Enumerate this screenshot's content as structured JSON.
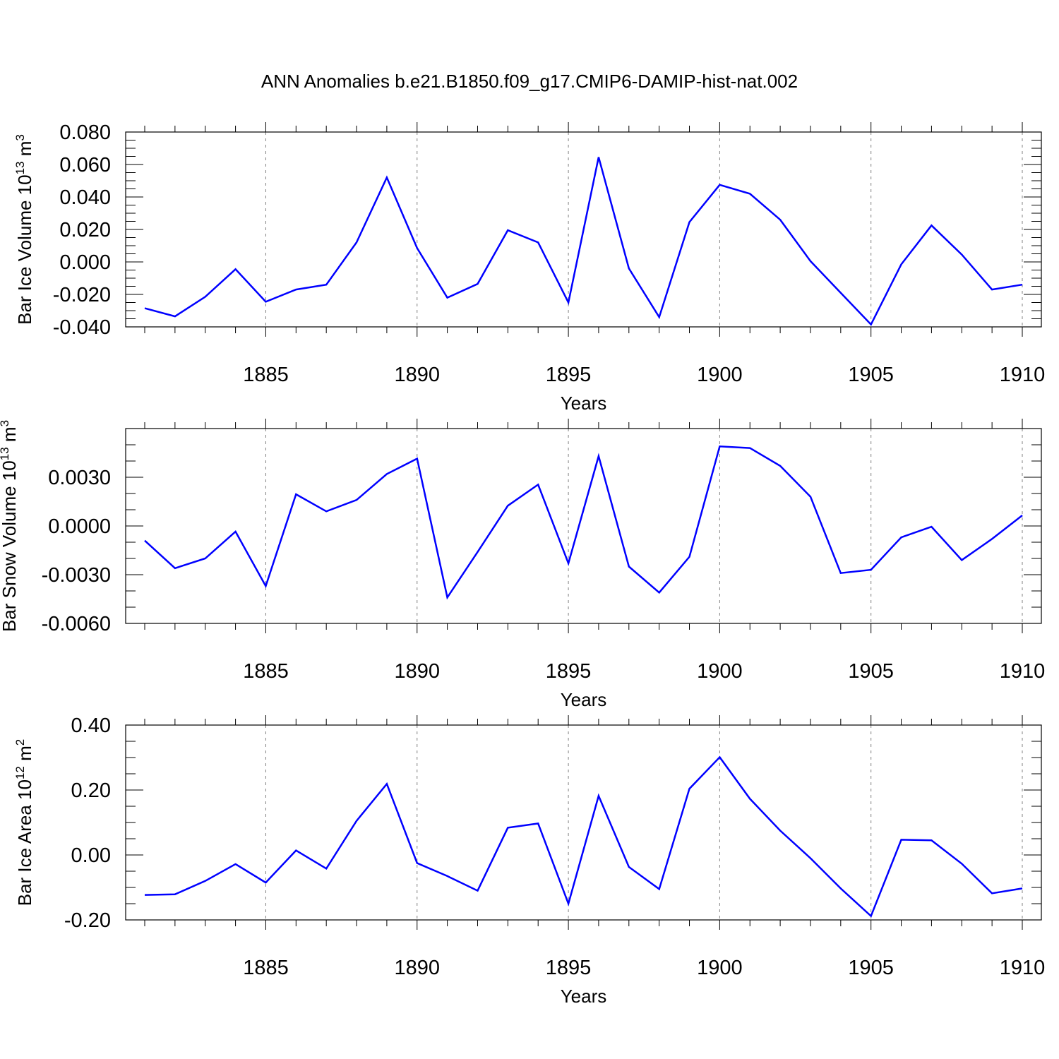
{
  "figure": {
    "title": "ANN Anomalies b.e21.B1850.f09_g17.CMIP6-DAMIP-hist-nat.002"
  },
  "chart_data": [
    {
      "type": "line",
      "ylabel": {
        "text": "Bar Ice Volume 10",
        "sup": "13",
        "unit": " m",
        "unit_sup": "3"
      },
      "xlabel": "Years",
      "xlim": [
        1881,
        1910
      ],
      "ylim": [
        -0.04,
        0.08
      ],
      "y_major_ticks": [
        -0.04,
        -0.02,
        0.0,
        0.02,
        0.04,
        0.06,
        0.08
      ],
      "y_tick_labels": [
        "-0.040",
        "-0.020",
        "0.000",
        "0.020",
        "0.040",
        "0.060",
        "0.080"
      ],
      "y_minor_step": 0.005,
      "x_major_ticks": [
        1885,
        1890,
        1895,
        1900,
        1905,
        1910
      ],
      "x_tick_labels": [
        "1885",
        "1890",
        "1895",
        "1900",
        "1905",
        "1910"
      ],
      "x_minor_step": 1,
      "grid": "vertical dashed at major x ticks",
      "line_color": "#0000ff",
      "series": [
        {
          "x": [
            1881,
            1882,
            1883,
            1884,
            1885,
            1886,
            1887,
            1888,
            1889,
            1890,
            1891,
            1892,
            1893,
            1894,
            1895,
            1896,
            1897,
            1898,
            1899,
            1900,
            1901,
            1902,
            1903,
            1904,
            1905,
            1906,
            1907,
            1908,
            1909,
            1910
          ],
          "values": [
            -0.0285,
            -0.0335,
            -0.0215,
            -0.0045,
            -0.0245,
            -0.017,
            -0.014,
            0.012,
            0.052,
            0.0085,
            -0.022,
            -0.0135,
            0.0195,
            0.012,
            -0.025,
            0.0645,
            -0.004,
            -0.034,
            0.0245,
            0.0475,
            0.042,
            0.026,
            0.0005,
            -0.019,
            -0.0385,
            -0.0015,
            0.0225,
            0.0045,
            -0.017,
            -0.014
          ]
        }
      ]
    },
    {
      "type": "line",
      "ylabel": {
        "text": "Bar Snow Volume 10",
        "sup": "13",
        "unit": " m",
        "unit_sup": "3"
      },
      "xlabel": "Years",
      "xlim": [
        1881,
        1910
      ],
      "ylim": [
        -0.006,
        0.006
      ],
      "y_major_ticks": [
        -0.006,
        -0.003,
        0.0,
        0.003
      ],
      "y_tick_labels": [
        "-0.0060",
        "-0.0030",
        "0.0000",
        "0.0030"
      ],
      "y_minor_step": 0.001,
      "x_major_ticks": [
        1885,
        1890,
        1895,
        1900,
        1905,
        1910
      ],
      "x_tick_labels": [
        "1885",
        "1890",
        "1895",
        "1900",
        "1905",
        "1910"
      ],
      "x_minor_step": 1,
      "grid": "vertical dashed at major x ticks",
      "line_color": "#0000ff",
      "series": [
        {
          "x": [
            1881,
            1882,
            1883,
            1884,
            1885,
            1886,
            1887,
            1888,
            1889,
            1890,
            1891,
            1892,
            1893,
            1894,
            1895,
            1896,
            1897,
            1898,
            1899,
            1900,
            1901,
            1902,
            1903,
            1904,
            1905,
            1906,
            1907,
            1908,
            1909,
            1910
          ],
          "values": [
            -0.0009,
            -0.0026,
            -0.002,
            -0.00035,
            -0.0037,
            0.00195,
            0.0009,
            0.0016,
            0.0032,
            0.00415,
            -0.0044,
            -0.0016,
            0.00125,
            0.00255,
            -0.0023,
            0.0043,
            -0.0025,
            -0.0041,
            -0.0019,
            0.0049,
            0.0048,
            0.0037,
            0.0018,
            -0.0029,
            -0.0027,
            -0.0007,
            -5e-05,
            -0.0021,
            -0.0008,
            0.00065
          ]
        }
      ]
    },
    {
      "type": "line",
      "ylabel": {
        "text": "Bar Ice Area 10",
        "sup": "12",
        "unit": " m",
        "unit_sup": "2"
      },
      "xlabel": "Years",
      "xlim": [
        1881,
        1910
      ],
      "ylim": [
        -0.2,
        0.4
      ],
      "y_major_ticks": [
        -0.2,
        0.0,
        0.2,
        0.4
      ],
      "y_tick_labels": [
        "-0.20",
        "0.00",
        "0.20",
        "0.40"
      ],
      "y_minor_step": 0.05,
      "x_major_ticks": [
        1885,
        1890,
        1895,
        1900,
        1905,
        1910
      ],
      "x_tick_labels": [
        "1885",
        "1890",
        "1895",
        "1900",
        "1905",
        "1910"
      ],
      "x_minor_step": 1,
      "grid": "vertical dashed at major x ticks",
      "line_color": "#0000ff",
      "series": [
        {
          "x": [
            1881,
            1882,
            1883,
            1884,
            1885,
            1886,
            1887,
            1888,
            1889,
            1890,
            1891,
            1892,
            1893,
            1894,
            1895,
            1896,
            1897,
            1898,
            1899,
            1900,
            1901,
            1902,
            1903,
            1904,
            1905,
            1906,
            1907,
            1908,
            1909,
            1910
          ],
          "values": [
            -0.123,
            -0.121,
            -0.08,
            -0.028,
            -0.085,
            0.014,
            -0.042,
            0.105,
            0.219,
            -0.025,
            -0.065,
            -0.11,
            0.084,
            0.097,
            -0.15,
            0.182,
            -0.037,
            -0.105,
            0.204,
            0.301,
            0.173,
            0.075,
            -0.01,
            -0.103,
            -0.188,
            0.047,
            0.045,
            -0.027,
            -0.118,
            -0.103
          ]
        }
      ]
    }
  ]
}
